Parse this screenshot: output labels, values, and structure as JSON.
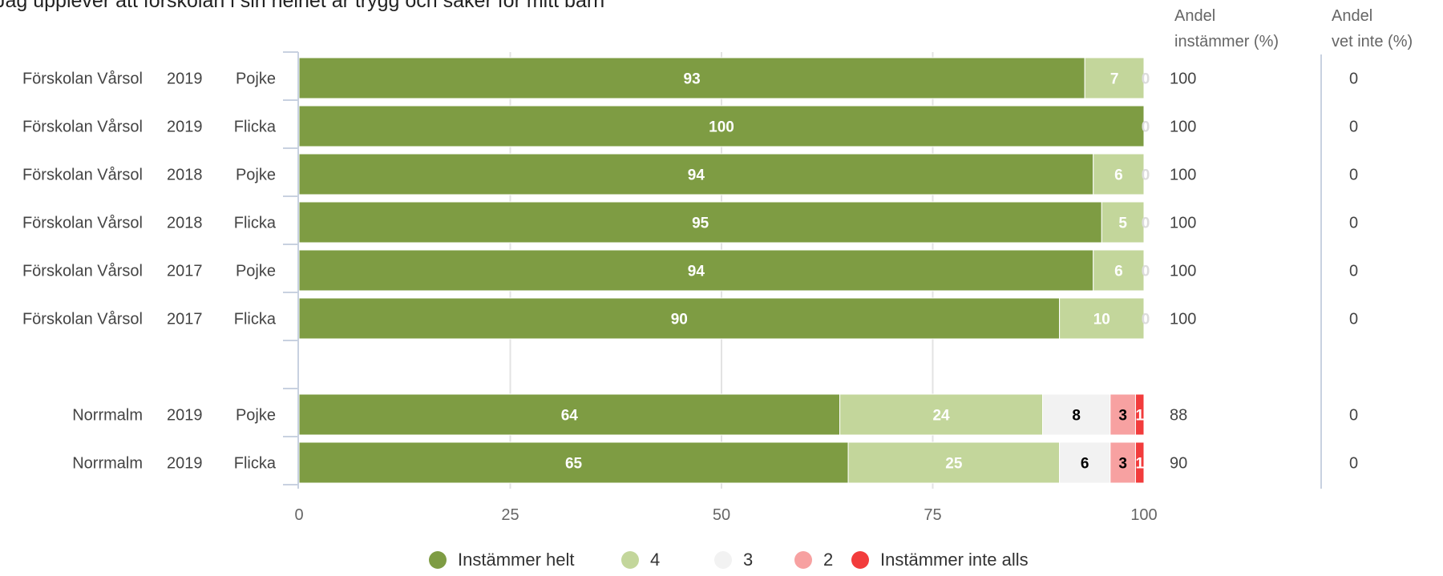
{
  "chart_data": {
    "type": "bar",
    "orientation": "horizontal",
    "stacked": true,
    "title": "Jag upplever att förskolan i sin helhet är trygg och säker för mitt barn",
    "xlim": [
      0,
      100
    ],
    "x_ticks": [
      "0",
      "25",
      "50",
      "75",
      "100"
    ],
    "grid": true,
    "legend_position": "bottom",
    "table_headers": {
      "andel_instammer": [
        "Andel",
        "instämmer (%)"
      ],
      "andel_vet_inte": [
        "Andel",
        "vet inte (%)"
      ]
    },
    "rows": [
      {
        "group": "Förskolan Vårsol",
        "year": "2019",
        "gender": "Pojke",
        "values": [
          93,
          7,
          0,
          0,
          0
        ],
        "labels": [
          "93",
          "7",
          "0",
          "",
          ""
        ],
        "andel_instammer": "100",
        "andel_vet_inte": "0"
      },
      {
        "group": "Förskolan Vårsol",
        "year": "2019",
        "gender": "Flicka",
        "values": [
          100,
          0,
          0,
          0,
          0
        ],
        "labels": [
          "100",
          "",
          "0",
          "",
          ""
        ],
        "andel_instammer": "100",
        "andel_vet_inte": "0"
      },
      {
        "group": "Förskolan Vårsol",
        "year": "2018",
        "gender": "Pojke",
        "values": [
          94,
          6,
          0,
          0,
          0
        ],
        "labels": [
          "94",
          "6",
          "0",
          "",
          ""
        ],
        "andel_instammer": "100",
        "andel_vet_inte": "0"
      },
      {
        "group": "Förskolan Vårsol",
        "year": "2018",
        "gender": "Flicka",
        "values": [
          95,
          5,
          0,
          0,
          0
        ],
        "labels": [
          "95",
          "5",
          "0",
          "",
          ""
        ],
        "andel_instammer": "100",
        "andel_vet_inte": "0"
      },
      {
        "group": "Förskolan Vårsol",
        "year": "2017",
        "gender": "Pojke",
        "values": [
          94,
          6,
          0,
          0,
          0
        ],
        "labels": [
          "94",
          "6",
          "0",
          "",
          ""
        ],
        "andel_instammer": "100",
        "andel_vet_inte": "0"
      },
      {
        "group": "Förskolan Vårsol",
        "year": "2017",
        "gender": "Flicka",
        "values": [
          90,
          10,
          0,
          0,
          0
        ],
        "labels": [
          "90",
          "10",
          "0",
          "",
          ""
        ],
        "andel_instammer": "100",
        "andel_vet_inte": "0"
      },
      null,
      {
        "group": "Norrmalm",
        "year": "2019",
        "gender": "Pojke",
        "values": [
          64,
          24,
          8,
          3,
          1
        ],
        "labels": [
          "64",
          "24",
          "8",
          "3",
          "1"
        ],
        "andel_instammer": "88",
        "andel_vet_inte": "0"
      },
      {
        "group": "Norrmalm",
        "year": "2019",
        "gender": "Flicka",
        "values": [
          65,
          25,
          6,
          3,
          1
        ],
        "labels": [
          "65",
          "25",
          "6",
          "3",
          "1"
        ],
        "andel_instammer": "90",
        "andel_vet_inte": "0"
      }
    ],
    "series": [
      {
        "name": "Instämmer helt",
        "color": "#7e9c43",
        "label_color": "#ffffff"
      },
      {
        "name": "4",
        "color": "#c3d69b",
        "label_color": "#ffffff"
      },
      {
        "name": "3",
        "color": "#f2f2f2",
        "label_color": "#000000"
      },
      {
        "name": "2",
        "color": "#f7a1a1",
        "label_color": "#000000"
      },
      {
        "name": "Instämmer inte alls",
        "color": "#f23c3c",
        "label_color": "#ffffff"
      }
    ]
  }
}
